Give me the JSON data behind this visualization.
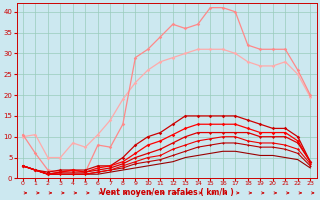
{
  "x": [
    0,
    1,
    2,
    3,
    4,
    5,
    6,
    7,
    8,
    9,
    10,
    11,
    12,
    13,
    14,
    15,
    16,
    17,
    18,
    19,
    20,
    21,
    22,
    23
  ],
  "lines": [
    {
      "y": [
        10.5,
        6,
        2,
        1.5,
        2,
        1.5,
        8,
        7.5,
        13,
        29,
        31,
        34,
        37,
        36,
        37,
        41,
        41,
        40,
        32,
        31,
        31,
        31,
        26,
        20
      ],
      "color": "#ff8888",
      "lw": 0.9,
      "marker": "D",
      "ms": 1.8,
      "zorder": 3
    },
    {
      "y": [
        10,
        10.5,
        5,
        5,
        8.5,
        7.5,
        10.5,
        14,
        19,
        23,
        26,
        28,
        29,
        30,
        31,
        31,
        31,
        30,
        28,
        27,
        27,
        28,
        25,
        19.5
      ],
      "color": "#ffaaaa",
      "lw": 0.9,
      "marker": "D",
      "ms": 1.8,
      "zorder": 2
    },
    {
      "y": [
        3,
        2,
        1.5,
        2,
        2,
        2,
        3,
        3,
        5,
        8,
        10,
        11,
        13,
        15,
        15,
        15,
        15,
        15,
        14,
        13,
        12,
        12,
        10,
        4
      ],
      "color": "#cc0000",
      "lw": 0.9,
      "marker": "D",
      "ms": 1.8,
      "zorder": 4
    },
    {
      "y": [
        3,
        2,
        1,
        1.5,
        2,
        1.5,
        2.5,
        3,
        4,
        6,
        8,
        9,
        10.5,
        12,
        13,
        13,
        13,
        13,
        12,
        11,
        11,
        11,
        9,
        4
      ],
      "color": "#ff0000",
      "lw": 0.9,
      "marker": "D",
      "ms": 1.8,
      "zorder": 4
    },
    {
      "y": [
        3,
        2,
        1,
        1.5,
        1.5,
        1.5,
        2,
        2.5,
        3.5,
        5,
        6,
        7,
        8.5,
        10,
        11,
        11,
        11,
        11,
        11,
        10,
        10,
        10,
        8.5,
        4
      ],
      "color": "#dd0000",
      "lw": 0.9,
      "marker": "D",
      "ms": 1.5,
      "zorder": 4
    },
    {
      "y": [
        3,
        2,
        1,
        1,
        1,
        1,
        1.5,
        2,
        3,
        4,
        5,
        5.5,
        7,
        8,
        9,
        9.5,
        10,
        10,
        9,
        8.5,
        8.5,
        8,
        7,
        3.5
      ],
      "color": "#ee0000",
      "lw": 0.8,
      "marker": "D",
      "ms": 1.5,
      "zorder": 4
    },
    {
      "y": [
        3,
        2,
        1,
        1,
        1,
        1,
        1.5,
        2,
        2.5,
        3.5,
        4,
        4.5,
        5.5,
        6.5,
        7.5,
        8,
        8.5,
        8.5,
        8,
        7.5,
        7.5,
        7,
        6,
        3
      ],
      "color": "#bb0000",
      "lw": 0.8,
      "marker": "D",
      "ms": 1.3,
      "zorder": 3
    },
    {
      "y": [
        3,
        2,
        1,
        1,
        1,
        1,
        1,
        1.5,
        2,
        2.5,
        3,
        3.5,
        4,
        5,
        5.5,
        6,
        6.5,
        6.5,
        6,
        5.5,
        5.5,
        5,
        4.5,
        2.5
      ],
      "color": "#990000",
      "lw": 0.8,
      "marker": null,
      "ms": 0,
      "zorder": 2
    }
  ],
  "xlabel": "Vent moyen/en rafales ( km/h )",
  "xlim": [
    -0.5,
    23.5
  ],
  "ylim": [
    0,
    42
  ],
  "yticks": [
    0,
    5,
    10,
    15,
    20,
    25,
    30,
    35,
    40
  ],
  "xticks": [
    0,
    1,
    2,
    3,
    4,
    5,
    6,
    7,
    8,
    9,
    10,
    11,
    12,
    13,
    14,
    15,
    16,
    17,
    18,
    19,
    20,
    21,
    22,
    23
  ],
  "bg_color": "#cce8f0",
  "grid_color": "#99ccbb",
  "tick_color": "#cc0000",
  "label_color": "#cc0000"
}
